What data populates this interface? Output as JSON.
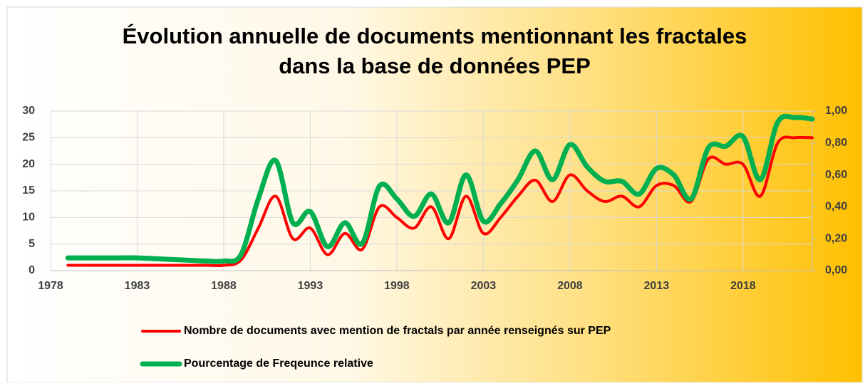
{
  "chart_data": {
    "type": "line",
    "title": [
      "Évolution annuelle de documents mentionnant les fractales",
      "dans la base de données PEP"
    ],
    "x": [
      1979,
      1980,
      1981,
      1982,
      1983,
      1984,
      1985,
      1986,
      1987,
      1988,
      1989,
      1990,
      1991,
      1992,
      1993,
      1994,
      1995,
      1996,
      1997,
      1998,
      1999,
      2000,
      2001,
      2002,
      2003,
      2004,
      2005,
      2006,
      2007,
      2008,
      2009,
      2010,
      2011,
      2012,
      2013,
      2014,
      2015,
      2016,
      2017,
      2018,
      2019,
      2020,
      2021,
      2022
    ],
    "series": [
      {
        "name": "Nombre de documents avec mention de fractals par année renseignés sur PEP",
        "color": "#ff0000",
        "values": [
          1,
          1,
          1,
          1,
          1,
          1,
          1,
          1,
          1,
          1,
          2,
          8,
          14,
          6,
          8,
          3,
          7,
          4,
          12,
          10,
          8,
          12,
          6,
          14,
          7,
          10,
          14,
          17,
          13,
          18,
          15,
          13,
          14,
          12,
          16,
          16,
          13,
          21,
          20,
          20,
          14,
          24,
          25,
          25
        ]
      },
      {
        "name": "Pourcentage de Freqeunce relative",
        "color": "#00b050",
        "axis": "y2",
        "values": [
          0.08,
          0.08,
          0.08,
          0.08,
          0.08,
          0.075,
          0.07,
          0.065,
          0.06,
          0.06,
          0.1,
          0.45,
          0.69,
          0.3,
          0.37,
          0.15,
          0.3,
          0.17,
          0.53,
          0.45,
          0.34,
          0.48,
          0.3,
          0.6,
          0.31,
          0.42,
          0.57,
          0.75,
          0.57,
          0.79,
          0.65,
          0.56,
          0.56,
          0.48,
          0.64,
          0.6,
          0.45,
          0.77,
          0.78,
          0.84,
          0.57,
          0.93,
          0.96,
          0.95
        ]
      }
    ],
    "xlim": [
      1978,
      2022
    ],
    "xticks": [
      1978,
      1983,
      1988,
      1993,
      1998,
      2003,
      2008,
      2013,
      2018
    ],
    "ylim": [
      0,
      30
    ],
    "yticks": [
      0,
      5,
      10,
      15,
      20,
      25,
      30
    ],
    "y2lim": [
      0,
      1
    ],
    "y2ticks": [
      {
        "value": 0,
        "label": "0,00"
      },
      {
        "value": 0.2,
        "label": "0,20"
      },
      {
        "value": 0.4,
        "label": "0,40"
      },
      {
        "value": 0.6,
        "label": "0,60"
      },
      {
        "value": 0.8,
        "label": "0,80"
      },
      {
        "value": 1,
        "label": "1,00"
      }
    ],
    "grid": true,
    "legend": "bottom"
  }
}
